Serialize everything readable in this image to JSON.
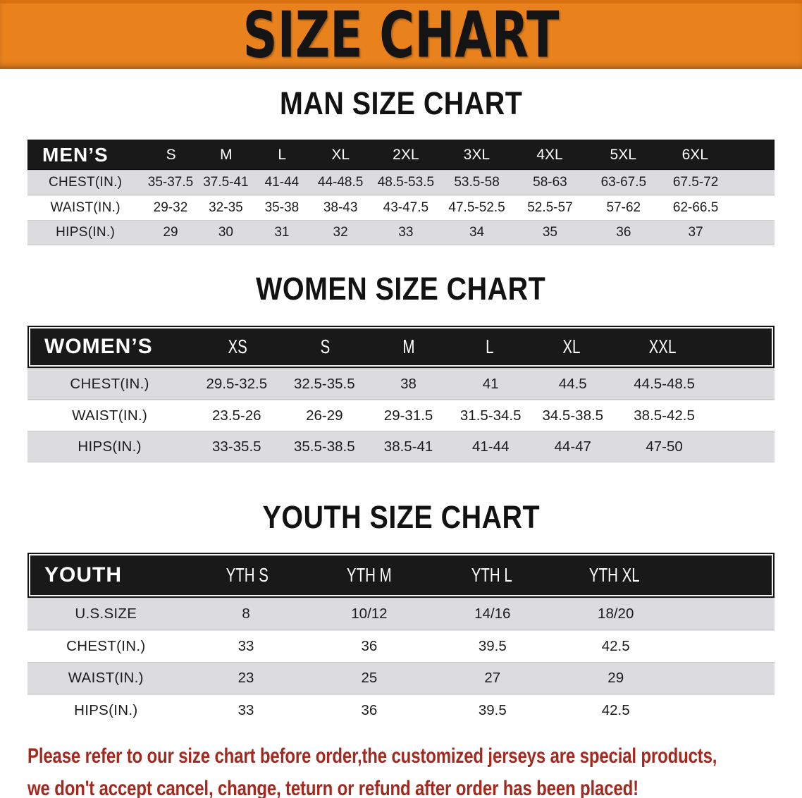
{
  "banner": {
    "title": "SIZE CHART"
  },
  "colors": {
    "banner_orange": "#E9821C",
    "header_black": "#191919",
    "stripe_gray": "#DCDCDE",
    "footer_red": "#A3291F"
  },
  "sections": [
    {
      "heading": "MAN SIZE CHART",
      "table": {
        "corner_label": "MEN’S",
        "columns": [
          "S",
          "M",
          "L",
          "XL",
          "2XL",
          "3XL",
          "4XL",
          "5XL",
          "6XL"
        ],
        "rows": [
          {
            "label": "CHEST(IN.)",
            "values": [
              "35-37.5",
              "37.5-41",
              "41-44",
              "44-48.5",
              "48.5-53.5",
              "53.5-58",
              "58-63",
              "63-67.5",
              "67.5-72"
            ]
          },
          {
            "label": "WAIST(IN.)",
            "values": [
              "29-32",
              "32-35",
              "35-38",
              "38-43",
              "43-47.5",
              "47.5-52.5",
              "52.5-57",
              "57-62",
              "62-66.5"
            ]
          },
          {
            "label": "HIPS(IN.)",
            "values": [
              "29",
              "30",
              "31",
              "32",
              "33",
              "34",
              "35",
              "36",
              "37"
            ]
          }
        ]
      }
    },
    {
      "heading": "WOMEN SIZE CHART",
      "table": {
        "corner_label": "WOMEN’S",
        "columns": [
          "XS",
          "S",
          "M",
          "L",
          "XL",
          "XXL"
        ],
        "rows": [
          {
            "label": "CHEST(IN.)",
            "values": [
              "29.5-32.5",
              "32.5-35.5",
              "38",
              "41",
              "44.5",
              "44.5-48.5"
            ]
          },
          {
            "label": "WAIST(IN.)",
            "values": [
              "23.5-26",
              "26-29",
              "29-31.5",
              "31.5-34.5",
              "34.5-38.5",
              "38.5-42.5"
            ]
          },
          {
            "label": "HIPS(IN.)",
            "values": [
              "33-35.5",
              "35.5-38.5",
              "38.5-41",
              "41-44",
              "44-47",
              "47-50"
            ]
          }
        ]
      }
    },
    {
      "heading": "YOUTH SIZE CHART",
      "table": {
        "corner_label": "YOUTH",
        "columns": [
          "YTH S",
          "YTH M",
          "YTH L",
          "YTH XL"
        ],
        "rows": [
          {
            "label": "U.S.SIZE",
            "values": [
              "8",
              "10/12",
              "14/16",
              "18/20"
            ]
          },
          {
            "label": "CHEST(IN.)",
            "values": [
              "33",
              "36",
              "39.5",
              "42.5"
            ]
          },
          {
            "label": "WAIST(IN.)",
            "values": [
              "23",
              "25",
              "27",
              "29"
            ]
          },
          {
            "label": "HIPS(IN.)",
            "values": [
              "33",
              "36",
              "39.5",
              "42.5"
            ]
          }
        ]
      }
    }
  ],
  "footer": {
    "line1": "Please refer to our size chart before order,the customized jerseys are special products,",
    "line2": "we don't accept cancel, change, teturn or refund after order has been placed!"
  }
}
